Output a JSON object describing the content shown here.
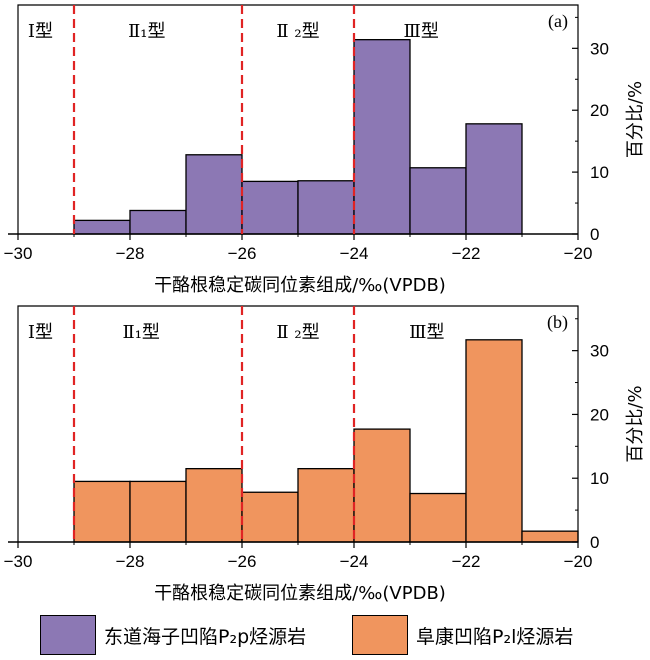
{
  "chart_data": [
    {
      "type": "bar",
      "panel_label": "(a)",
      "x": {
        "label": "干酪根稳定碳同位素组成/‰(VPDB)",
        "range": [
          -30,
          -20
        ],
        "ticks": [
          "−30",
          "−28",
          "−26",
          "−24",
          "−22",
          "−20"
        ]
      },
      "y": {
        "label": "百分比/%",
        "range": [
          0,
          37
        ],
        "ticks": [
          "0",
          "10",
          "20",
          "30"
        ]
      },
      "series": [
        {
          "name": "东道海子凹陷P₂p烃源岩",
          "color": "#8c78b4",
          "bins": [
            {
              "x0": -29,
              "x1": -28,
              "value": 2.2
            },
            {
              "x0": -28,
              "x1": -27,
              "value": 3.8
            },
            {
              "x0": -27,
              "x1": -26,
              "value": 12.8
            },
            {
              "x0": -26,
              "x1": -25,
              "value": 8.5
            },
            {
              "x0": -25,
              "x1": -24,
              "value": 8.6
            },
            {
              "x0": -24,
              "x1": -23,
              "value": 31.4
            },
            {
              "x0": -23,
              "x1": -22,
              "value": 10.7
            },
            {
              "x0": -22,
              "x1": -21,
              "value": 17.8
            }
          ]
        }
      ],
      "type_lines": [
        -29,
        -26,
        -24
      ],
      "type_labels": [
        {
          "text": "Ⅰ型",
          "x": -29.6
        },
        {
          "text": "Ⅱ₁型",
          "x": -27.7
        },
        {
          "text": "Ⅱ ₂型",
          "x": -25.0
        },
        {
          "text": "Ⅲ型",
          "x": -22.8
        }
      ]
    },
    {
      "type": "bar",
      "panel_label": "(b)",
      "x": {
        "label": "干酪根稳定碳同位素组成/‰(VPDB)",
        "range": [
          -30,
          -20
        ],
        "ticks": [
          "−30",
          "−28",
          "−26",
          "−24",
          "−22",
          "−20"
        ]
      },
      "y": {
        "label": "百分比/%",
        "range": [
          0,
          37
        ],
        "ticks": [
          "0",
          "10",
          "20",
          "30"
        ]
      },
      "series": [
        {
          "name": "阜康凹陷P₂l烃源岩",
          "color": "#f0955e",
          "bins": [
            {
              "x0": -29,
              "x1": -28,
              "value": 9.5
            },
            {
              "x0": -28,
              "x1": -27,
              "value": 9.5
            },
            {
              "x0": -27,
              "x1": -26,
              "value": 11.5
            },
            {
              "x0": -26,
              "x1": -25,
              "value": 7.8
            },
            {
              "x0": -25,
              "x1": -24,
              "value": 11.5
            },
            {
              "x0": -24,
              "x1": -23,
              "value": 17.7
            },
            {
              "x0": -23,
              "x1": -22,
              "value": 7.6
            },
            {
              "x0": -22,
              "x1": -21,
              "value": 31.7
            },
            {
              "x0": -21,
              "x1": -20,
              "value": 1.7
            }
          ]
        }
      ],
      "type_lines": [
        -29,
        -26,
        -24
      ],
      "type_labels": [
        {
          "text": "Ⅰ型",
          "x": -29.6
        },
        {
          "text": "Ⅱ₁型",
          "x": -27.8
        },
        {
          "text": "Ⅱ ₂型",
          "x": -25.0
        },
        {
          "text": "Ⅲ型",
          "x": -22.7
        }
      ]
    }
  ],
  "legend": [
    {
      "label": "东道海子凹陷P₂p烃源岩",
      "color": "#8c78b4"
    },
    {
      "label": "阜康凹陷P₂l烃源岩",
      "color": "#f0955e"
    }
  ]
}
